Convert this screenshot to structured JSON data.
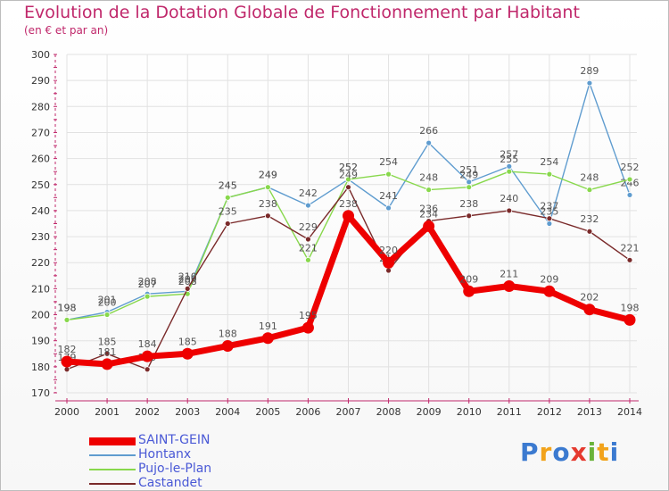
{
  "header": {
    "title": "Evolution de la Dotation Globale de Fonctionnement par Habitant",
    "subtitle": "(en € et par an)"
  },
  "logo": {
    "text": "Proxiti"
  },
  "colors": {
    "title": "#c0286b",
    "axis": "#c0286b",
    "grid": "#e2e2e2",
    "label": "#555555",
    "legend_text": "#4a59d6"
  },
  "chart_data": {
    "type": "line",
    "x": [
      "2000",
      "2001",
      "2002",
      "2003",
      "2004",
      "2005",
      "2006",
      "2007",
      "2008",
      "2009",
      "2010",
      "2011",
      "2012",
      "2013",
      "2014"
    ],
    "ylim": [
      170,
      300
    ],
    "yticks": [
      170,
      180,
      190,
      200,
      210,
      220,
      230,
      240,
      250,
      260,
      270,
      280,
      290,
      300
    ],
    "grid": true,
    "legend_position": "bottom-left",
    "series": [
      {
        "name": "SAINT-GEIN",
        "color": "#ee0000",
        "emphasis": true,
        "values": [
          182,
          181,
          184,
          185,
          188,
          191,
          195,
          238,
          220,
          234,
          209,
          211,
          209,
          202,
          198
        ]
      },
      {
        "name": "Hontanx",
        "color": "#5f9ccf",
        "values": [
          198,
          201,
          208,
          209,
          245,
          249,
          242,
          252,
          241,
          266,
          251,
          257,
          235,
          289,
          246
        ]
      },
      {
        "name": "Pujo-le-Plan",
        "color": "#88d84c",
        "values": [
          198,
          200,
          207,
          208,
          245,
          249,
          221,
          252,
          254,
          248,
          249,
          255,
          254,
          248,
          252
        ]
      },
      {
        "name": "Castandet",
        "color": "#7a2a2a",
        "values": [
          179,
          185,
          179,
          210,
          235,
          238,
          229,
          249,
          217,
          236,
          238,
          240,
          237,
          232,
          221
        ]
      }
    ]
  }
}
